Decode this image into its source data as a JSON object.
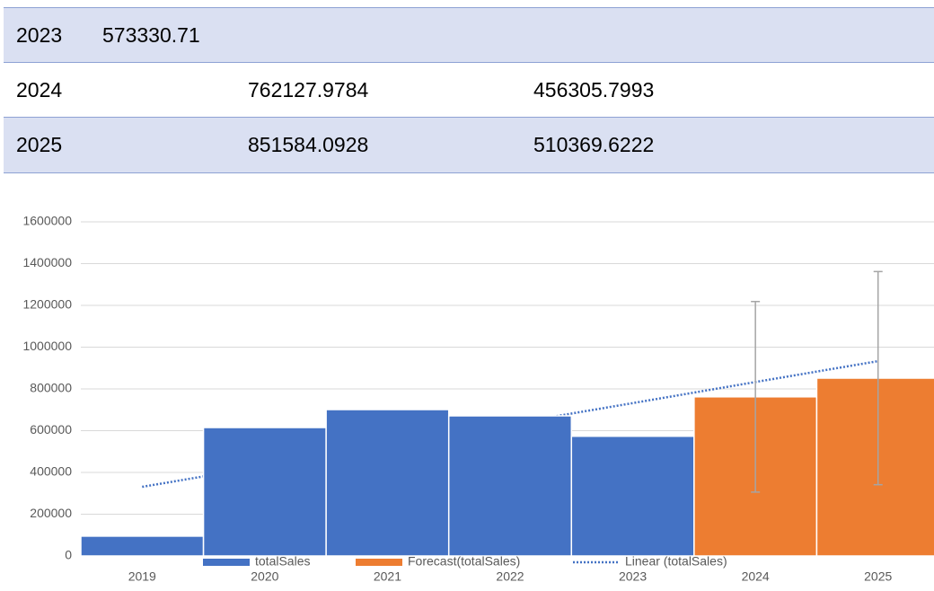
{
  "table": {
    "rows": [
      [
        "2023",
        "573330.71"
      ],
      [
        "2024",
        "762127.9784",
        "456305.7993"
      ],
      [
        "2025",
        "851584.0928",
        "510369.6222"
      ]
    ]
  },
  "chart_data": {
    "type": "bar",
    "categories": [
      "2019",
      "2020",
      "2021",
      "2022",
      "2023",
      "2024",
      "2025"
    ],
    "series": [
      {
        "name": "totalSales",
        "color": "#4472c4",
        "values": [
          95000,
          615000,
          701000,
          671000,
          573330.71,
          null,
          null
        ]
      },
      {
        "name": "Forecast(totalSales)",
        "color": "#ed7d31",
        "values": [
          null,
          null,
          null,
          null,
          null,
          762127.9784,
          851584.0928
        ],
        "errors": [
          null,
          null,
          null,
          null,
          null,
          456305.7993,
          510369.6222
        ],
        "error_color": "#a5a5a5"
      },
      {
        "name": "Linear (totalSales)",
        "color": "#4472c4",
        "line": "dotted",
        "values": [
          331000,
          431000,
          532000,
          632000,
          732000,
          833000,
          933000
        ]
      }
    ],
    "ylim": [
      0,
      1600000
    ],
    "yticks": [
      0,
      200000,
      400000,
      600000,
      800000,
      1000000,
      1200000,
      1400000,
      1600000
    ],
    "grid": true,
    "legend": "bottom"
  }
}
